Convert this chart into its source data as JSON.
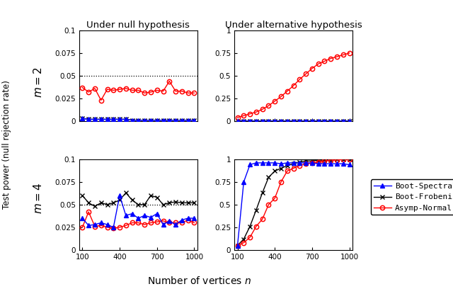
{
  "x": [
    100,
    150,
    200,
    250,
    300,
    350,
    400,
    450,
    500,
    550,
    600,
    650,
    700,
    750,
    800,
    850,
    900,
    950,
    1000
  ],
  "null_m2_spectral": [
    0.003,
    0.002,
    0.002,
    0.002,
    0.002,
    0.002,
    0.002,
    0.002,
    0.001,
    0.001,
    0.001,
    0.001,
    0.001,
    0.001,
    0.001,
    0.001,
    0.001,
    0.001,
    0.001
  ],
  "null_m2_frobenius": [
    0.003,
    0.002,
    0.002,
    0.002,
    0.002,
    0.002,
    0.002,
    0.002,
    0.001,
    0.001,
    0.001,
    0.001,
    0.001,
    0.001,
    0.001,
    0.001,
    0.001,
    0.001,
    0.001
  ],
  "null_m2_asymp": [
    0.037,
    0.032,
    0.036,
    0.023,
    0.035,
    0.034,
    0.035,
    0.036,
    0.034,
    0.034,
    0.031,
    0.032,
    0.034,
    0.033,
    0.044,
    0.033,
    0.033,
    0.031,
    0.031
  ],
  "alt_m2_spectral": [
    0.003,
    0.003,
    0.002,
    0.002,
    0.002,
    0.002,
    0.002,
    0.002,
    0.002,
    0.002,
    0.002,
    0.002,
    0.002,
    0.002,
    0.002,
    0.002,
    0.002,
    0.002,
    0.002
  ],
  "alt_m2_frobenius": [
    0.003,
    0.003,
    0.002,
    0.002,
    0.002,
    0.002,
    0.002,
    0.002,
    0.002,
    0.002,
    0.002,
    0.002,
    0.002,
    0.002,
    0.002,
    0.002,
    0.002,
    0.002,
    0.002
  ],
  "alt_m2_asymp": [
    0.04,
    0.06,
    0.08,
    0.1,
    0.13,
    0.17,
    0.22,
    0.27,
    0.33,
    0.39,
    0.46,
    0.52,
    0.58,
    0.63,
    0.66,
    0.69,
    0.71,
    0.73,
    0.75
  ],
  "null_m4_spectral": [
    0.035,
    0.027,
    0.028,
    0.03,
    0.028,
    0.025,
    0.06,
    0.038,
    0.04,
    0.035,
    0.038,
    0.036,
    0.04,
    0.028,
    0.032,
    0.028,
    0.033,
    0.035,
    0.035
  ],
  "null_m4_frobenius": [
    0.06,
    0.052,
    0.048,
    0.052,
    0.05,
    0.052,
    0.055,
    0.063,
    0.055,
    0.05,
    0.05,
    0.06,
    0.058,
    0.05,
    0.052,
    0.053,
    0.052,
    0.052,
    0.052
  ],
  "null_m4_asymp": [
    0.025,
    0.042,
    0.026,
    0.027,
    0.025,
    0.024,
    0.025,
    0.027,
    0.03,
    0.03,
    0.028,
    0.03,
    0.031,
    0.032,
    0.03,
    0.03,
    0.03,
    0.033,
    0.03
  ],
  "alt_m4_spectral": [
    0.05,
    0.75,
    0.94,
    0.96,
    0.96,
    0.96,
    0.96,
    0.95,
    0.96,
    0.96,
    0.96,
    0.96,
    0.96,
    0.95,
    0.95,
    0.95,
    0.95,
    0.95,
    0.94
  ],
  "alt_m4_frobenius": [
    0.05,
    0.12,
    0.26,
    0.44,
    0.63,
    0.8,
    0.87,
    0.9,
    0.93,
    0.95,
    0.97,
    0.98,
    0.98,
    0.99,
    0.99,
    0.99,
    1.0,
    1.0,
    1.0
  ],
  "alt_m4_asymp": [
    0.05,
    0.08,
    0.14,
    0.26,
    0.34,
    0.5,
    0.57,
    0.75,
    0.87,
    0.9,
    0.93,
    0.95,
    0.96,
    0.97,
    0.98,
    0.99,
    0.99,
    1.0,
    1.0
  ],
  "color_spectral": "#0000FF",
  "color_frobenius": "#000000",
  "color_asymp": "#FF0000",
  "title_null": "Under null hypothesis",
  "title_alt": "Under alternative hypothesis",
  "ylabel_shared": "Test power (null rejection rate)",
  "xlabel": "Number of vertices $n$",
  "label_m2": "$m = 2$",
  "label_m4": "$m = 4$",
  "legend_spectral": "Boot-Spectral",
  "legend_frobenius": "Boot-Frobenius",
  "legend_asymp": "Asymp-Normal",
  "hline_y": 0.05,
  "null_yticks": [
    0,
    0.025,
    0.05,
    0.075,
    0.1
  ],
  "null_ylim": [
    0,
    0.1
  ],
  "alt_yticks": [
    0,
    0.25,
    0.5,
    0.75,
    1
  ],
  "alt_ylim": [
    0,
    1
  ],
  "xticks": [
    100,
    400,
    700,
    1000
  ],
  "xlim": [
    75,
    1025
  ]
}
